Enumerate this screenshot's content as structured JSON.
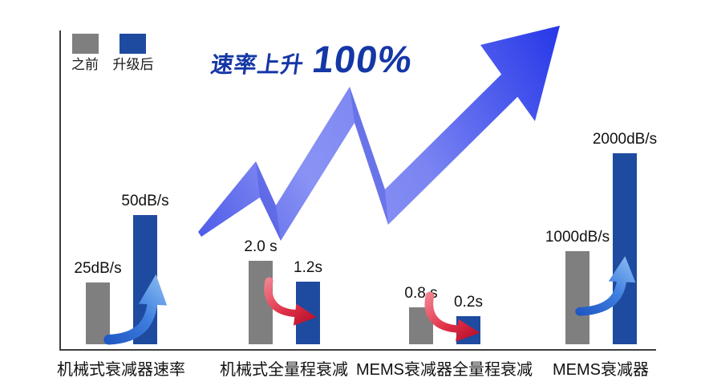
{
  "chart_data": {
    "type": "bar",
    "headline": {
      "prefix": "速率上升",
      "big": "100%"
    },
    "legend": {
      "before": "之前",
      "after": "升级后"
    },
    "colors": {
      "before_bar": "#7f7f7f",
      "after_bar": "#1e4b9f",
      "headline_text": "#1537a6",
      "axis": "#3d3d3d",
      "big_arrow_start": "#4f5ce8",
      "big_arrow_mid1": "#8a93f4",
      "big_arrow_mid2": "#7b85f2",
      "big_arrow_end": "#2637e8",
      "trend_up": [
        "#9ccaf6",
        "#3f7fe0",
        "#1b52c0"
      ],
      "trend_down": [
        "#f2808e",
        "#e03048",
        "#b50d28"
      ]
    },
    "groups": [
      {
        "category": "机械式衰减器速率",
        "before_label": "25dB/s",
        "after_label": "50dB/s",
        "before_value": 25,
        "after_value": 50,
        "unit": "dB/s",
        "trend": "up",
        "before_h": 77,
        "after_h": 161
      },
      {
        "category": "机械式全量程衰减",
        "before_label": "2.0 s",
        "after_label": "1.2s",
        "before_value": 2.0,
        "after_value": 1.2,
        "unit": "s",
        "trend": "down",
        "before_h": 104,
        "after_h": 78
      },
      {
        "category": "MEMS衰减器全量程衰减",
        "before_label": "0.8 s",
        "after_label": "0.2s",
        "before_value": 0.8,
        "after_value": 0.2,
        "unit": "s",
        "trend": "down",
        "before_h": 46,
        "after_h": 35
      },
      {
        "category": "MEMS衰减器",
        "before_label": "1000dB/s",
        "after_label": "2000dB/s",
        "before_value": 1000,
        "after_value": 2000,
        "unit": "dB/s",
        "trend": "up",
        "before_h": 116,
        "after_h": 238
      }
    ]
  }
}
